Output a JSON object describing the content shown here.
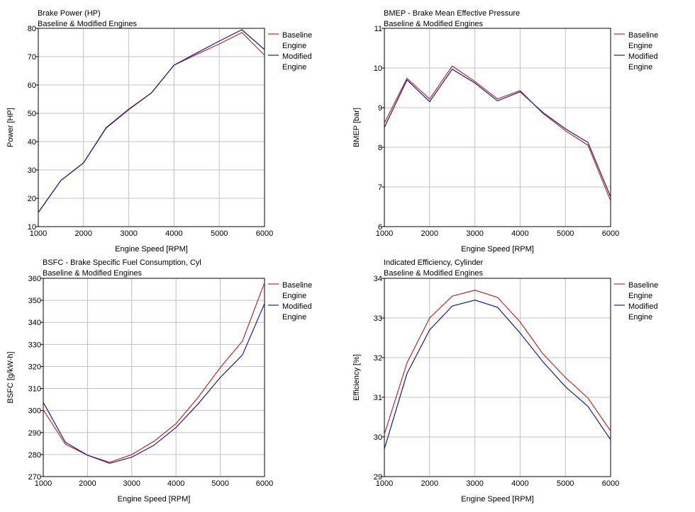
{
  "colors": {
    "baseline": "#c0282d",
    "modified": "#1a1a8c",
    "grid": "#c0c0c0",
    "axis": "#000000"
  },
  "chart_data": [
    {
      "type": "line",
      "title": "Brake Power (HP)",
      "subtitle": "Baseline & Modified Engines",
      "xlabel": "Engine Speed [RPM]",
      "ylabel": "Power [HP]",
      "xlim": [
        1000,
        6000
      ],
      "ylim": [
        10,
        80
      ],
      "xticks": [
        1000,
        2000,
        3000,
        4000,
        5000,
        6000
      ],
      "yticks": [
        10,
        20,
        30,
        40,
        50,
        60,
        70,
        80
      ],
      "grid": true,
      "legend": "right",
      "x": [
        1000,
        1500,
        2000,
        2500,
        3000,
        3500,
        4000,
        4500,
        5000,
        5500,
        6000
      ],
      "series": [
        {
          "name": "Baseline Engine",
          "values": [
            15,
            26.3,
            32.5,
            45,
            51.5,
            57.2,
            67,
            70.8,
            74.5,
            78.5,
            70.5
          ]
        },
        {
          "name": "Modified Engine",
          "values": [
            15,
            26.3,
            32.5,
            44.8,
            51.3,
            57.2,
            67,
            71.3,
            75.5,
            79.5,
            72.5
          ]
        }
      ]
    },
    {
      "type": "line",
      "title": "BMEP - Brake Mean Effective Pressure",
      "subtitle": "Baseline & Modified Engines",
      "xlabel": "Engine Speed [RPM]",
      "ylabel": "BMEP [bar]",
      "xlim": [
        1000,
        6000
      ],
      "ylim": [
        6,
        11
      ],
      "xticks": [
        1000,
        2000,
        3000,
        4000,
        5000,
        6000
      ],
      "yticks": [
        6,
        7,
        8,
        9,
        10,
        11
      ],
      "grid": true,
      "legend": "right",
      "x": [
        1000,
        1500,
        2000,
        2500,
        3000,
        3500,
        4000,
        4500,
        5000,
        5500,
        6000
      ],
      "series": [
        {
          "name": "Baseline Engine",
          "values": [
            8.61,
            9.74,
            9.22,
            10.05,
            9.66,
            9.22,
            9.43,
            8.86,
            8.42,
            8.05,
            6.65
          ]
        },
        {
          "name": "Modified Engine",
          "values": [
            8.5,
            9.7,
            9.15,
            9.97,
            9.62,
            9.17,
            9.4,
            8.88,
            8.47,
            8.12,
            6.75
          ]
        }
      ]
    },
    {
      "type": "line",
      "title": "BSFC - Brake Specific Fuel Consumption, Cyl",
      "subtitle": "Baseline & Modified Engines",
      "xlabel": "Engine Speed [RPM]",
      "ylabel": "BSFC [g/kW-h]",
      "xlim": [
        1000,
        6000
      ],
      "ylim": [
        270,
        360
      ],
      "xticks": [
        1000,
        2000,
        3000,
        4000,
        5000,
        6000
      ],
      "yticks": [
        270,
        280,
        290,
        300,
        310,
        320,
        330,
        340,
        350,
        360
      ],
      "grid": true,
      "legend": "right",
      "x": [
        1000,
        1500,
        2000,
        2500,
        3000,
        3500,
        4000,
        4500,
        5000,
        5500,
        6000
      ],
      "series": [
        {
          "name": "Baseline Engine",
          "values": [
            300.3,
            284.7,
            279.7,
            276.5,
            280,
            286,
            294,
            306,
            319.5,
            331.5,
            358
          ]
        },
        {
          "name": "Modified Engine",
          "values": [
            303.7,
            285.6,
            279.7,
            276,
            278.8,
            284.2,
            292.3,
            303,
            315,
            325.2,
            348.5
          ]
        }
      ]
    },
    {
      "type": "line",
      "title": "Indicated Efficiency, Cylinder",
      "subtitle": "Baseline & Modified Engines",
      "xlabel": "Engine Speed [RPM]",
      "ylabel": "Efficiency [%]",
      "xlim": [
        1000,
        6000
      ],
      "ylim": [
        29,
        34
      ],
      "xticks": [
        1000,
        2000,
        3000,
        4000,
        5000,
        6000
      ],
      "yticks": [
        29,
        30,
        31,
        32,
        33,
        34
      ],
      "grid": true,
      "legend": "right",
      "x": [
        1000,
        1500,
        2000,
        2500,
        3000,
        3500,
        4000,
        4500,
        5000,
        5500,
        6000
      ],
      "series": [
        {
          "name": "Baseline Engine",
          "values": [
            30.07,
            31.87,
            33.0,
            33.55,
            33.7,
            33.52,
            32.9,
            32.1,
            31.5,
            30.98,
            30.15
          ]
        },
        {
          "name": "Modified Engine",
          "values": [
            29.7,
            31.6,
            32.7,
            33.3,
            33.45,
            33.27,
            32.62,
            31.9,
            31.27,
            30.77,
            29.93
          ]
        }
      ]
    }
  ],
  "legend_lines": [
    [
      "Baseline",
      "Engine"
    ],
    [
      "Modified",
      "Engine"
    ]
  ]
}
